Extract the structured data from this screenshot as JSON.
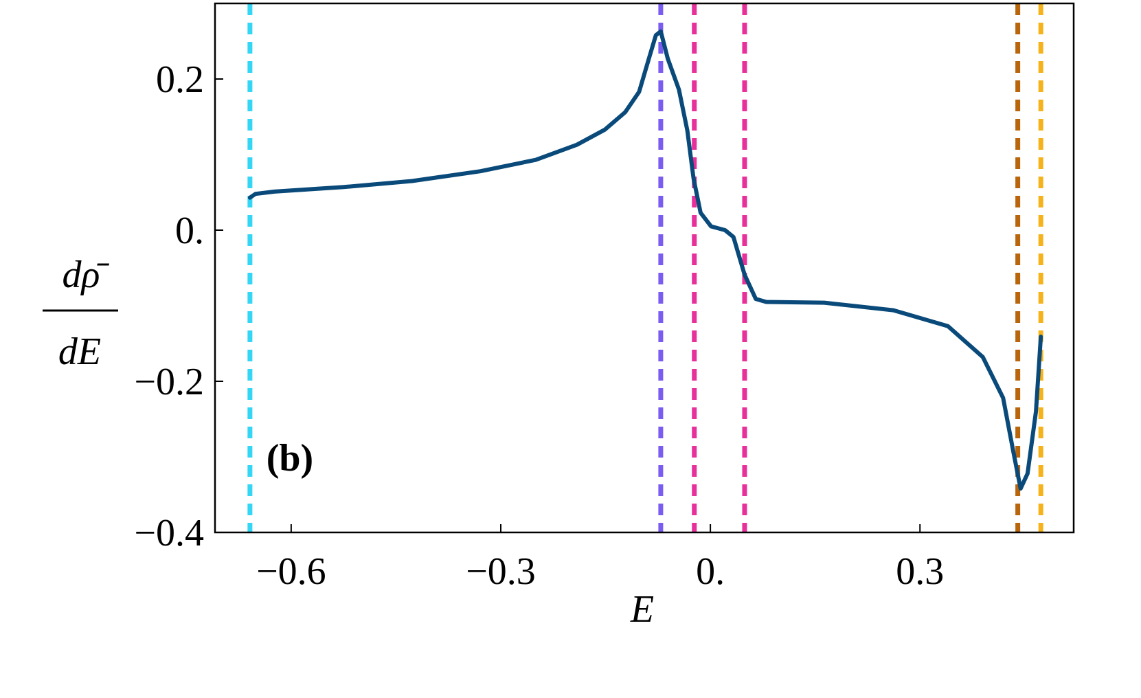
{
  "chart_data": {
    "type": "line",
    "panel_label": "(b)",
    "x_label": "E",
    "y_label_numerator": "dρ̄",
    "y_label_denominator": "dE",
    "xlim": [
      -0.709,
      0.52
    ],
    "ylim": [
      -0.4,
      0.3
    ],
    "xticks": [
      {
        "value": -0.6,
        "label": "−0.6"
      },
      {
        "value": -0.3,
        "label": "−0.3"
      },
      {
        "value": 0,
        "label": "0."
      },
      {
        "value": 0.3,
        "label": "0.3"
      }
    ],
    "yticks": [
      {
        "value": -0.4,
        "label": "−0.4"
      },
      {
        "value": -0.2,
        "label": "−0.2"
      },
      {
        "value": 0,
        "label": "0."
      },
      {
        "value": 0.2,
        "label": "0.2"
      }
    ],
    "vlines": [
      {
        "x": -0.659,
        "color": "#33d6f5"
      },
      {
        "x": -0.071,
        "color": "#7b5cf0"
      },
      {
        "x": -0.023,
        "color": "#e8309a"
      },
      {
        "x": 0.049,
        "color": "#e8309a"
      },
      {
        "x": 0.44,
        "color": "#b8650c"
      },
      {
        "x": 0.473,
        "color": "#f5b21a"
      }
    ],
    "series": [
      {
        "color": "#0a4a7a",
        "x": [
          -0.659,
          -0.651,
          -0.624,
          -0.525,
          -0.427,
          -0.329,
          -0.25,
          -0.191,
          -0.151,
          -0.122,
          -0.102,
          -0.088,
          -0.078,
          -0.071,
          -0.061,
          -0.045,
          -0.033,
          -0.024,
          -0.014,
          0.001,
          0.021,
          0.033,
          0.049,
          0.065,
          0.08,
          0.163,
          0.262,
          0.34,
          0.39,
          0.419,
          0.434,
          0.444,
          0.454,
          0.466,
          0.473
        ],
        "values": [
          0.043,
          0.048,
          0.051,
          0.057,
          0.065,
          0.078,
          0.093,
          0.113,
          0.133,
          0.156,
          0.183,
          0.227,
          0.258,
          0.263,
          0.227,
          0.186,
          0.132,
          0.068,
          0.023,
          0.005,
          0,
          -0.009,
          -0.059,
          -0.091,
          -0.095,
          -0.096,
          -0.106,
          -0.127,
          -0.168,
          -0.222,
          -0.295,
          -0.342,
          -0.322,
          -0.24,
          -0.141
        ]
      }
    ]
  }
}
